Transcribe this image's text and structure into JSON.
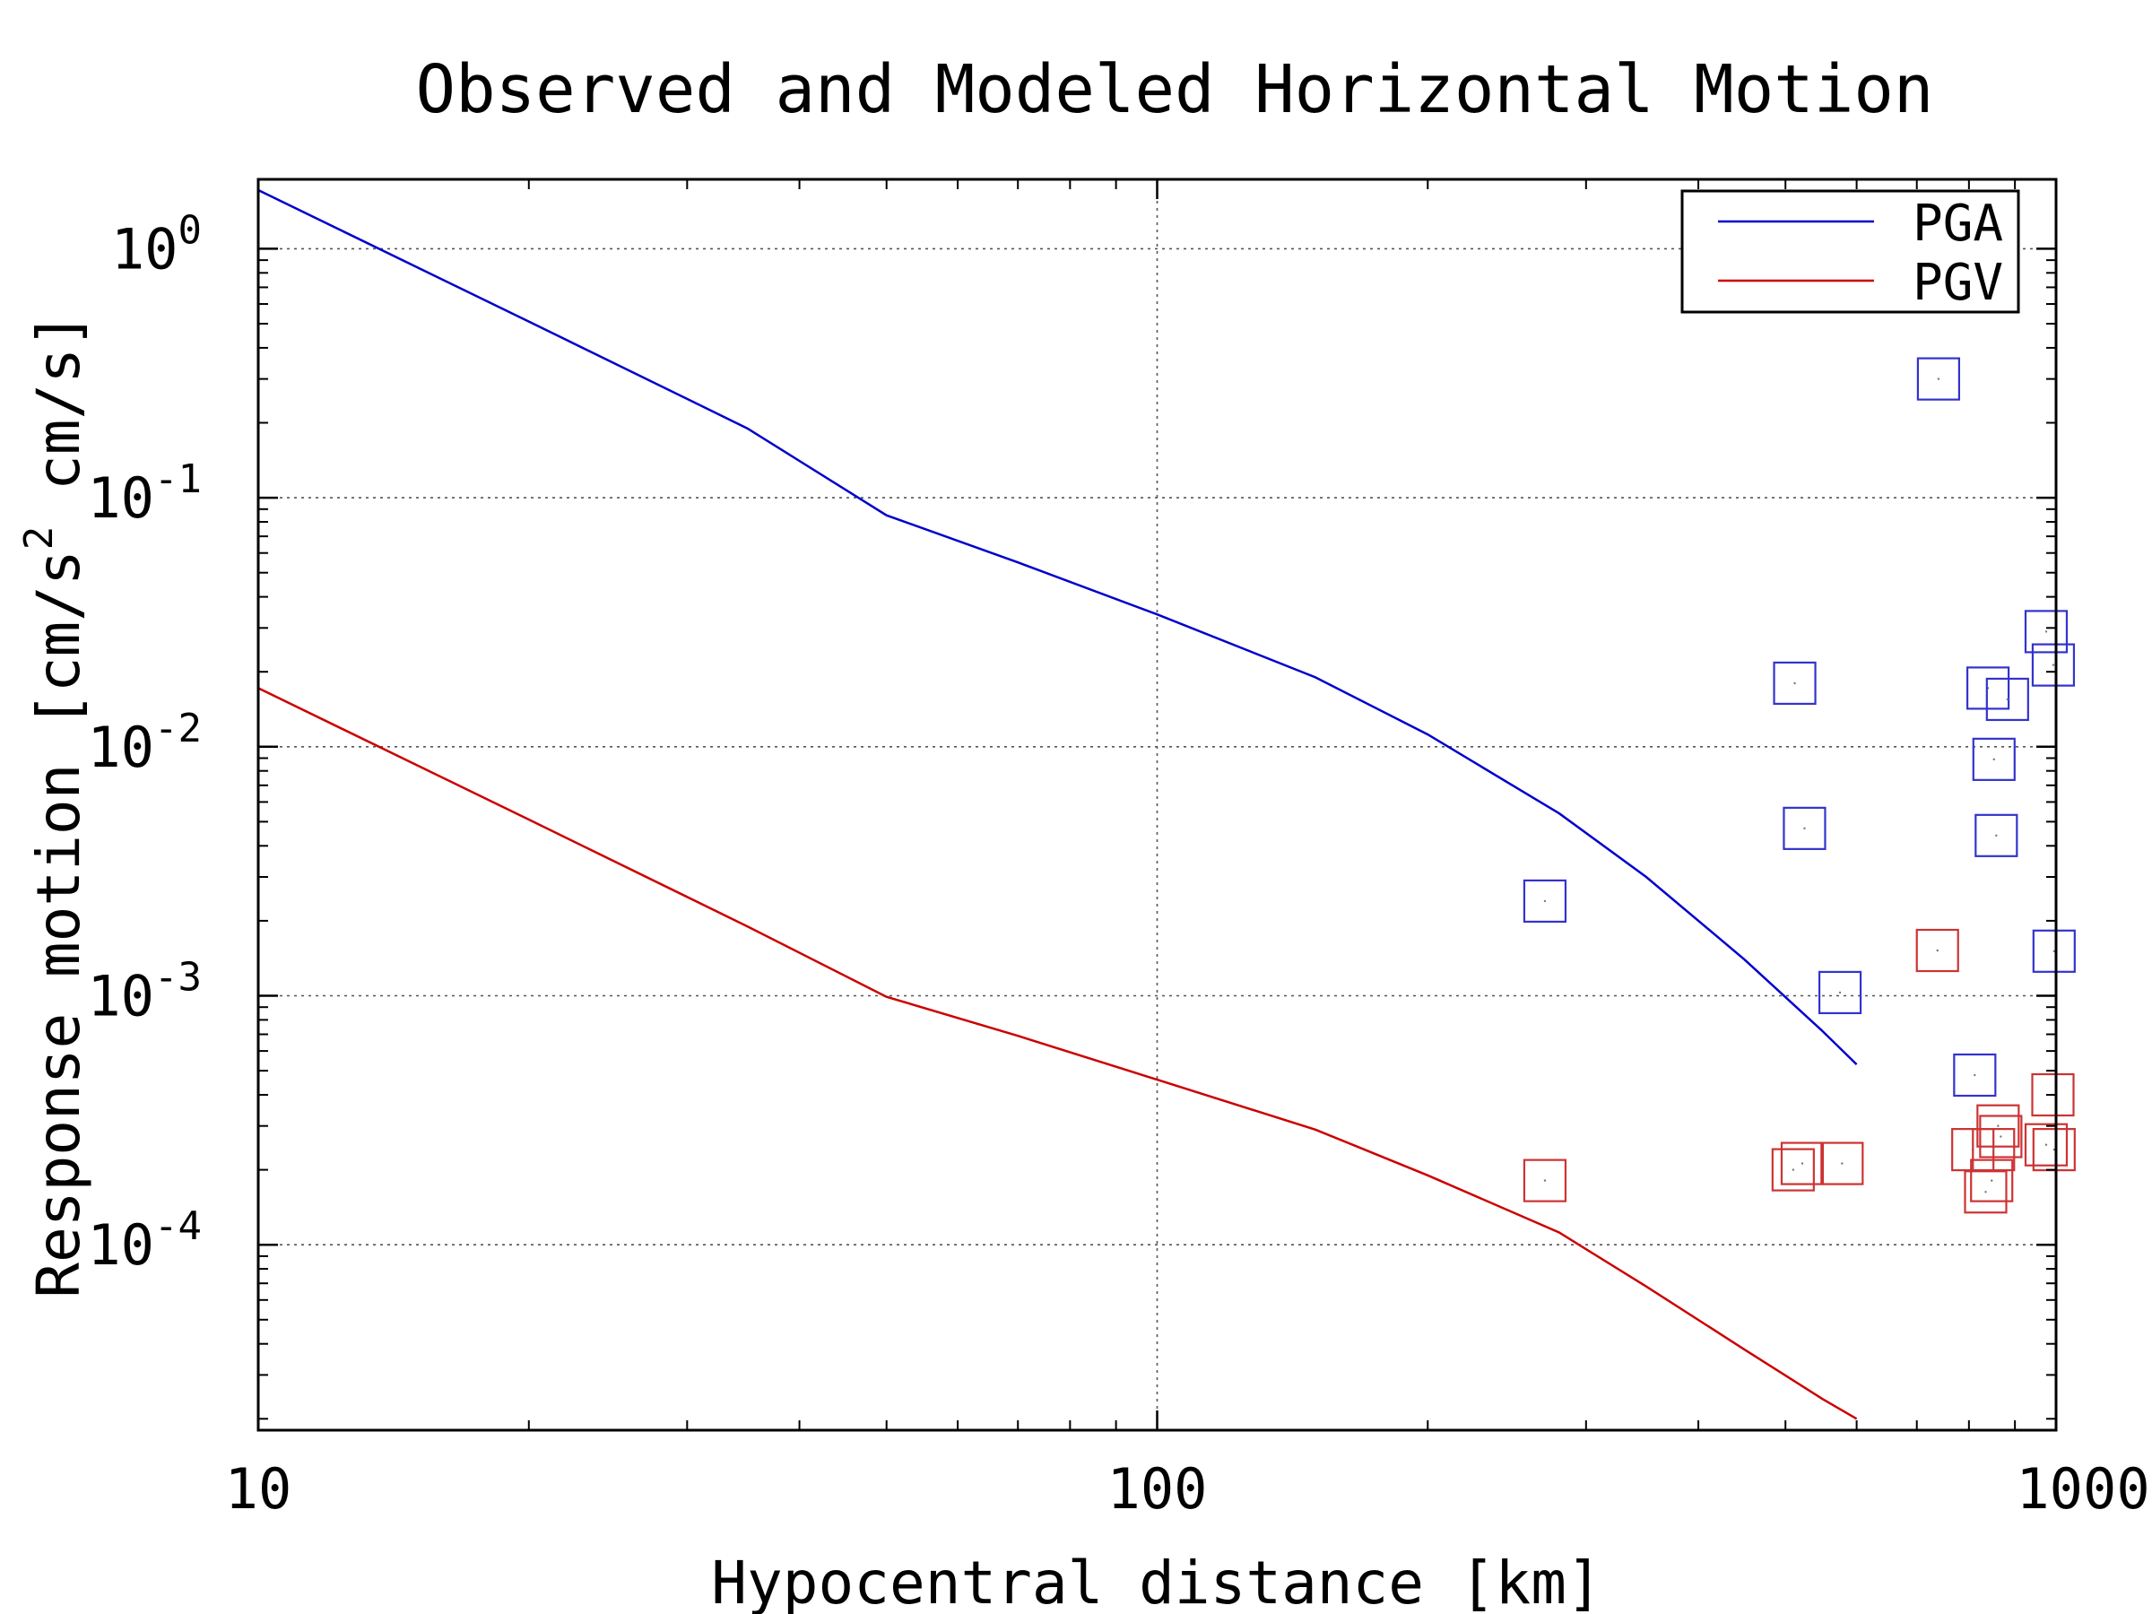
{
  "chart_data": {
    "type": "line",
    "title": "Observed and Modeled Horizontal Motion",
    "xlabel": "Hypocentral distance [km]",
    "ylabel_parts": [
      "Response motion  [cm/s",
      "2",
      "  cm/s]"
    ],
    "x_scale": "log",
    "y_scale": "log",
    "xlim": [
      10,
      1000
    ],
    "ylim": [
      1.8e-05,
      1.9
    ],
    "x_ticks": [
      {
        "value": 10,
        "label": "10"
      },
      {
        "value": 100,
        "label": "100"
      },
      {
        "value": 1000,
        "label": "1000"
      }
    ],
    "y_ticks": [
      {
        "value": 1,
        "base": "10",
        "exp": "0"
      },
      {
        "value": 0.1,
        "base": "10",
        "exp": "-1"
      },
      {
        "value": 0.01,
        "base": "10",
        "exp": "-2"
      },
      {
        "value": 0.001,
        "base": "10",
        "exp": "-3"
      },
      {
        "value": 0.0001,
        "base": "10",
        "exp": "-4"
      }
    ],
    "grid": true,
    "legend_position": "top-right",
    "series": [
      {
        "name": "PGA",
        "color": "#0000cc",
        "x": [
          10,
          20,
          35,
          50,
          70,
          100,
          150,
          200,
          280,
          350,
          450,
          550,
          600
        ],
        "y": [
          1.72,
          0.51,
          0.19,
          0.085,
          0.055,
          0.034,
          0.019,
          0.0112,
          0.0054,
          0.003,
          0.0014,
          0.00072,
          0.00053
        ]
      },
      {
        "name": "PGV",
        "color": "#cc0000",
        "x": [
          10,
          20,
          35,
          50,
          70,
          100,
          150,
          200,
          280,
          350,
          450,
          550,
          600
        ],
        "y": [
          0.0172,
          0.0051,
          0.0019,
          0.00099,
          0.00069,
          0.00046,
          0.00029,
          0.00019,
          0.000112,
          6.8e-05,
          3.8e-05,
          2.4e-05,
          2e-05
        ]
      }
    ],
    "observed": [
      {
        "name": "PGA",
        "color": "#3333cc",
        "x": [
          270,
          512,
          525,
          575,
          740,
          812,
          840,
          853,
          858,
          883,
          975,
          993,
          995
        ],
        "y": [
          0.0024,
          0.018,
          0.0047,
          0.00103,
          0.3,
          0.00048,
          0.0172,
          0.0089,
          0.0044,
          0.0155,
          0.029,
          0.0213,
          0.00151
        ]
      },
      {
        "name": "PGV",
        "color": "#cc3333",
        "x": [
          270,
          510,
          522,
          578,
          738,
          808,
          835,
          848,
          852,
          862,
          868,
          975,
          992,
          995
        ],
        "y": [
          0.000181,
          0.0002,
          0.000212,
          0.000212,
          0.00152,
          0.000241,
          0.000163,
          0.000181,
          0.000241,
          0.0003,
          0.000272,
          0.000252,
          0.0004,
          0.000241
        ]
      }
    ]
  }
}
